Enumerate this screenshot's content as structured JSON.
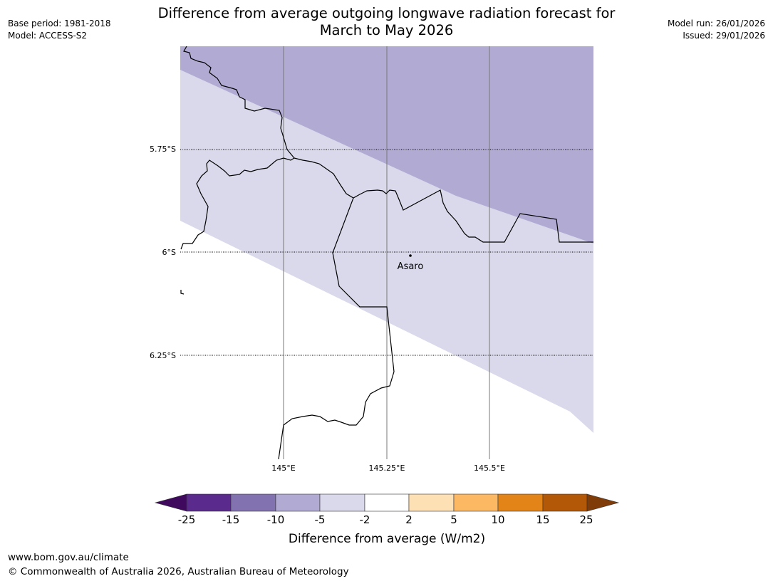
{
  "title_line1": "Difference from average outgoing longwave radiation forecast for",
  "title_line2": "March to May 2026",
  "base_period": "Base period: 1981-2018",
  "model": "Model: ACCESS-S2",
  "model_run": "Model run: 26/01/2026",
  "issued": "Issued: 29/01/2026",
  "lat_labels": [
    "5.75°S",
    "6°S",
    "6.25°S"
  ],
  "lon_labels": [
    "145°E",
    "145.25°E",
    "145.5°E"
  ],
  "place_label": "Asaro",
  "colorbar": {
    "tick_labels": [
      "-25",
      "-15",
      "-10",
      "-5",
      "-2",
      "2",
      "5",
      "10",
      "15",
      "25"
    ],
    "label": "Difference from average (W/m2)",
    "colors": [
      "#3f0a5e",
      "#5a2a8c",
      "#8273b0",
      "#b1abd3",
      "#d9d9eb",
      "#ffffff",
      "#fee0b5",
      "#fdb864",
      "#e28417",
      "#b35806",
      "#7f3b08"
    ]
  },
  "footer_url": "www.bom.gov.au/climate",
  "footer_copyright": "© Commonwealth of Australia 2026, Australian Bureau of Meteorology"
}
